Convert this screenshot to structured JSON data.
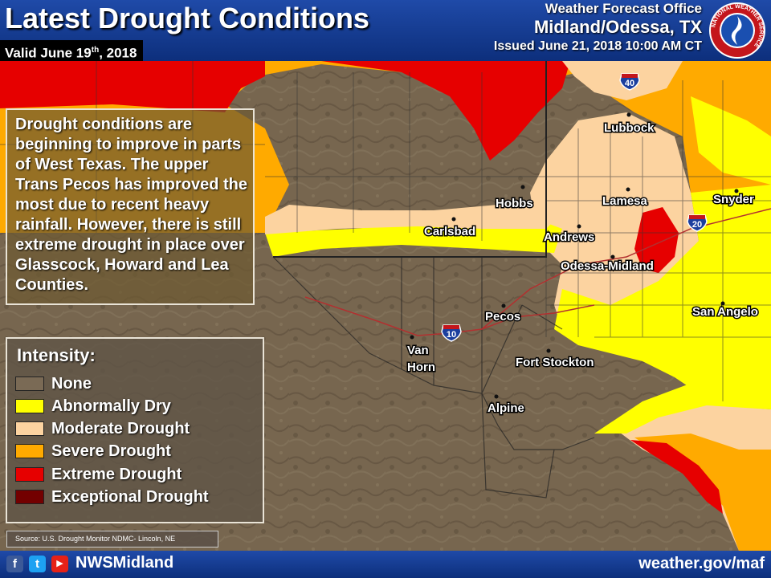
{
  "header": {
    "title": "Latest Drought Conditions",
    "valid_prefix": "Valid June 19",
    "valid_sup": "th",
    "valid_suffix": ", 2018",
    "office_line1": "Weather Forecast Office",
    "office_line2": "Midland/Odessa, TX",
    "issued": "Issued June 21, 2018 10:00 AM CT",
    "logo_text": "NATIONAL WEATHER SERVICE"
  },
  "summary": "Drought conditions are beginning to improve in parts of West Texas. The upper Trans Pecos has improved the most due to recent heavy rainfall. However, there is still extreme drought in place over Glasscock, Howard and Lea Counties.",
  "legend": {
    "title": "Intensity:",
    "items": [
      {
        "label": "None",
        "color": "#7a6a55"
      },
      {
        "label": "Abnormally Dry",
        "color": "#ffff00"
      },
      {
        "label": "Moderate Drought",
        "color": "#fcd3a0"
      },
      {
        "label": "Severe Drought",
        "color": "#ffaa00"
      },
      {
        "label": "Extreme Drought",
        "color": "#e60000"
      },
      {
        "label": "Exceptional Drought",
        "color": "#730000"
      }
    ]
  },
  "source": "Source: U.S. Drought Monitor NDMC- Lincoln, NE",
  "cities": [
    "Lubbock",
    "Hobbs",
    "Lamesa",
    "Snyder",
    "Carlsbad",
    "Andrews",
    "Odessa-Midland",
    "Pecos",
    "San Angelo",
    "Van",
    "Horn",
    "Fort Stockton",
    "Alpine"
  ],
  "highways": [
    "40",
    "20",
    "10"
  ],
  "footer": {
    "social": [
      "f",
      "t",
      "▶"
    ],
    "handle": "NWSMidland",
    "url": "weather.gov/maf"
  }
}
